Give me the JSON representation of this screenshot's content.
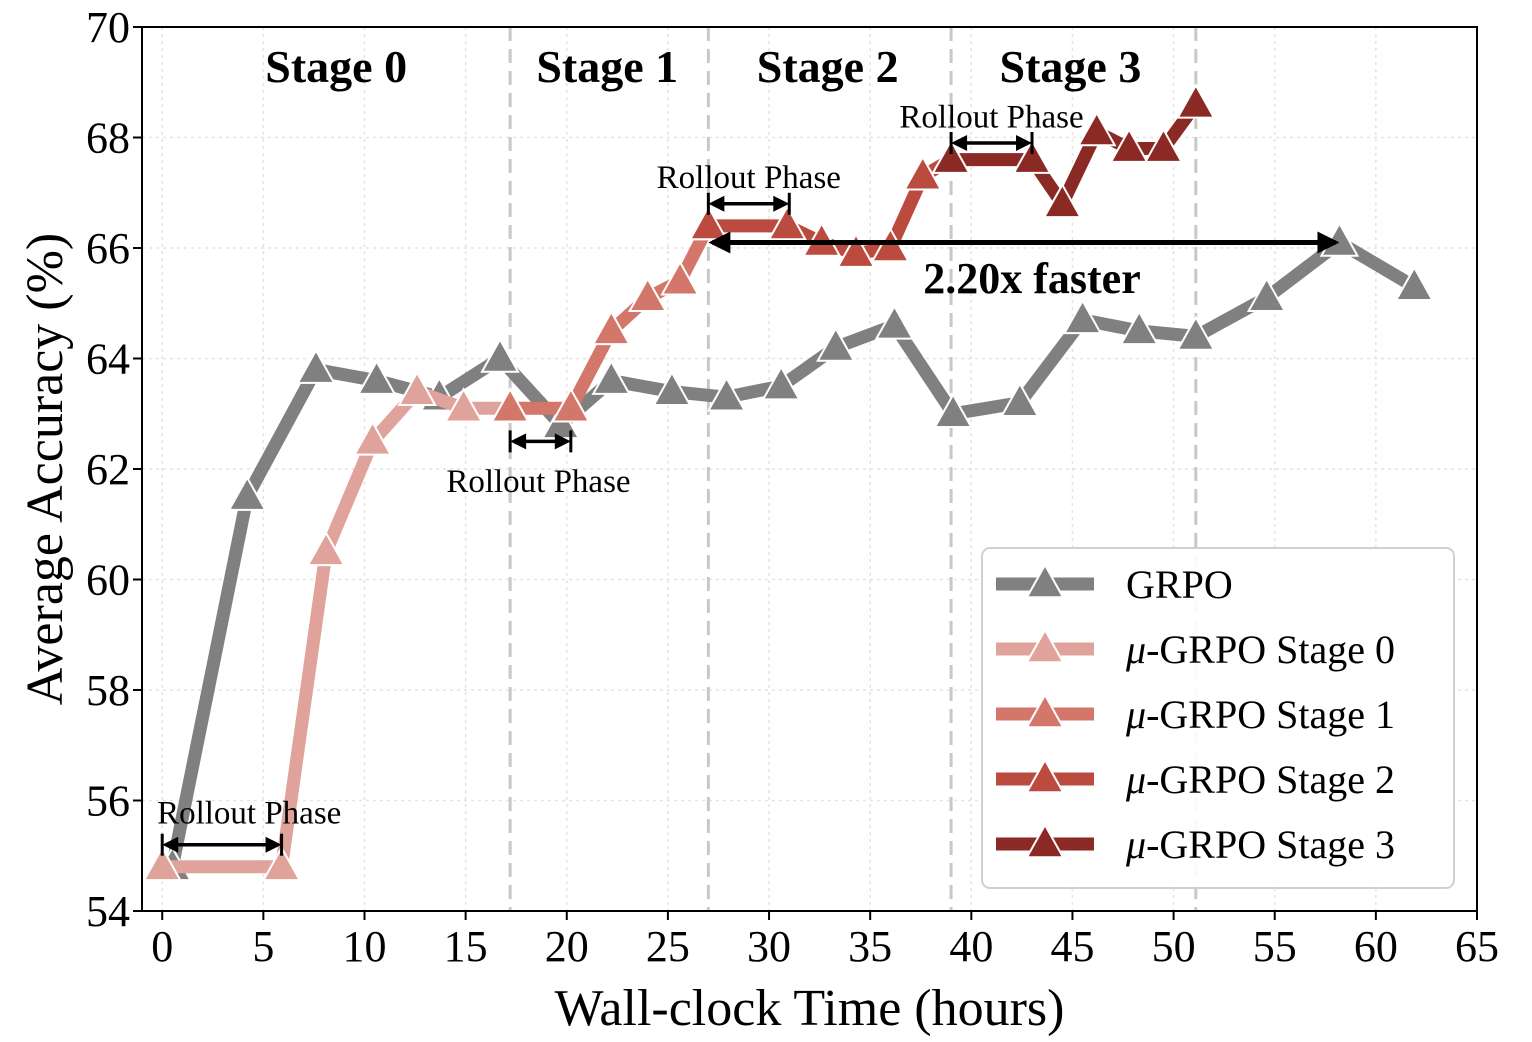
{
  "chart_data": {
    "type": "line",
    "xlabel": "Wall-clock Time (hours)",
    "ylabel": "Average Accuracy (%)",
    "xlim": [
      -1,
      65
    ],
    "ylim": [
      54,
      70
    ],
    "xticks": [
      0,
      5,
      10,
      15,
      20,
      25,
      30,
      35,
      40,
      45,
      50,
      55,
      60,
      65
    ],
    "yticks": [
      54,
      56,
      58,
      60,
      62,
      64,
      66,
      68,
      70
    ],
    "grid": true,
    "legend_position": "lower-right",
    "stage_boundaries": [
      17.2,
      27.0,
      39.0,
      51.1
    ],
    "stage_labels": [
      {
        "text": "Stage 0",
        "x_center": 8.6
      },
      {
        "text": "Stage 1",
        "x_center": 22.0
      },
      {
        "text": "Stage 2",
        "x_center": 32.9
      },
      {
        "text": "Stage 3",
        "x_center": 44.9
      }
    ],
    "series": [
      {
        "name": "GRPO",
        "color": "#808080",
        "x": [
          0.5,
          4.2,
          7.6,
          10.6,
          13.7,
          16.7,
          19.7,
          22.2,
          25.2,
          27.9,
          30.6,
          33.3,
          36.2,
          39.1,
          42.4,
          45.5,
          48.3,
          51.1,
          54.6,
          58.2,
          61.9
        ],
        "y": [
          54.8,
          61.5,
          63.8,
          63.6,
          63.3,
          64.0,
          62.8,
          63.6,
          63.4,
          63.3,
          63.5,
          64.2,
          64.6,
          63.0,
          63.2,
          64.7,
          64.5,
          64.4,
          65.1,
          66.1,
          65.3
        ]
      },
      {
        "name": "μ-GRPO Stage 0",
        "color": "#e0a39c",
        "x": [
          0.0,
          5.9,
          8.1,
          10.4,
          12.6,
          14.9,
          17.2
        ],
        "y": [
          54.8,
          54.8,
          60.5,
          62.5,
          63.4,
          63.1,
          63.1
        ]
      },
      {
        "name": "μ-GRPO Stage 1",
        "color": "#d3776b",
        "x": [
          17.2,
          20.2,
          22.2,
          24.0,
          25.6,
          27.0
        ],
        "y": [
          63.1,
          63.1,
          64.5,
          65.1,
          65.4,
          66.4
        ]
      },
      {
        "name": "μ-GRPO Stage 2",
        "color": "#bb4a3f",
        "x": [
          27.0,
          30.9,
          32.6,
          34.3,
          36.0,
          37.6,
          39.0
        ],
        "y": [
          66.4,
          66.4,
          66.1,
          65.9,
          66.0,
          67.3,
          67.6
        ]
      },
      {
        "name": "μ-GRPO Stage 3",
        "color": "#8b2a24",
        "x": [
          39.0,
          43.0,
          44.5,
          46.2,
          47.8,
          49.5,
          51.1
        ],
        "y": [
          67.6,
          67.6,
          66.8,
          68.1,
          67.8,
          67.8,
          68.6
        ]
      }
    ],
    "annotations": [
      {
        "text": "Rollout Phase",
        "arrow_x": [
          0.0,
          5.9
        ],
        "arrow_y": 55.2,
        "text_x": 4.3,
        "text_y": 55.8
      },
      {
        "text": "Rollout Phase",
        "arrow_x": [
          17.2,
          20.2
        ],
        "arrow_y": 62.5,
        "text_x": 18.6,
        "text_y": 61.8
      },
      {
        "text": "Rollout Phase",
        "arrow_x": [
          27.0,
          31.0
        ],
        "arrow_y": 66.8,
        "text_x": 29.0,
        "text_y": 67.3
      },
      {
        "text": "Rollout Phase",
        "arrow_x": [
          39.0,
          43.0
        ],
        "arrow_y": 67.9,
        "text_x": 41.0,
        "text_y": 68.4
      },
      {
        "text": "2.20x faster",
        "arrow_x": [
          27.0,
          58.2
        ],
        "arrow_y": 66.1,
        "text_x": 43.0,
        "text_y": 65.4,
        "bold": true
      }
    ]
  }
}
